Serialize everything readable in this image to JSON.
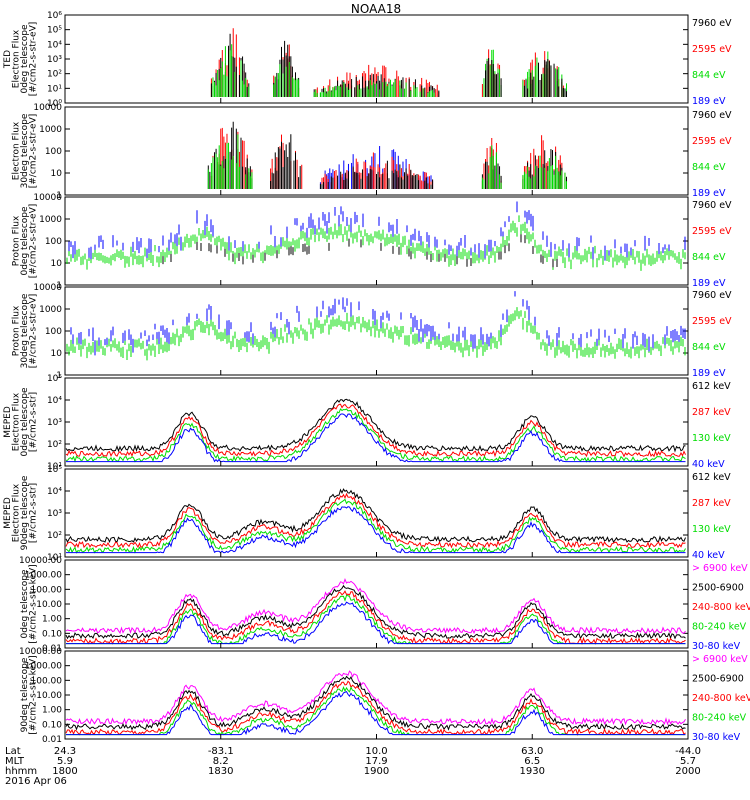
{
  "title": "NOAA18",
  "colors": {
    "blue": "#0000ff",
    "red": "#ff0000",
    "green": "#00dd00",
    "black": "#000000",
    "magenta": "#ff00ff"
  },
  "chart_data": [
    {
      "type": "line",
      "panel": 1,
      "log": true,
      "yticks": [
        "10⁰",
        "10¹",
        "10²",
        "10³",
        "10⁴",
        "10⁵",
        "10⁶"
      ],
      "ylabel_lines": [
        "TED",
        "Electron Flux",
        "0deg telescope",
        "[#/cm2-s-str-eV]"
      ],
      "series": [
        {
          "name": "7960 eV",
          "color": "#000000"
        },
        {
          "name": "2595 eV",
          "color": "#ff0000"
        },
        {
          "name": "844 eV",
          "color": "#00dd00"
        },
        {
          "name": "189 eV",
          "color": "#0000ff"
        }
      ],
      "bursts": [
        {
          "x": 0.265,
          "w": 0.03,
          "peak": 0.82,
          "colors": [
            "#ff0000",
            "#000000",
            "#00dd00"
          ]
        },
        {
          "x": 0.355,
          "w": 0.02,
          "peak": 0.78,
          "colors": [
            "#ff0000",
            "#000000",
            "#00dd00"
          ]
        },
        {
          "x": 0.5,
          "w": 0.1,
          "peak": 0.38,
          "colors": [
            "#ff0000",
            "#000000",
            "#00dd00"
          ]
        },
        {
          "x": 0.685,
          "w": 0.015,
          "peak": 0.78,
          "colors": [
            "#ff0000",
            "#00dd00",
            "#000000"
          ]
        },
        {
          "x": 0.77,
          "w": 0.035,
          "peak": 0.62,
          "colors": [
            "#ff0000",
            "#00dd00",
            "#000000"
          ]
        }
      ]
    },
    {
      "type": "line",
      "panel": 2,
      "log": true,
      "yticks": [
        "1",
        "10",
        "100",
        "1000",
        "10000"
      ],
      "ylabel_lines": [
        "Electron Flux",
        "30deg telescope",
        "[#/cm2-s-str-eV]"
      ],
      "series": [
        {
          "name": "7960 eV",
          "color": "#000000"
        },
        {
          "name": "2595 eV",
          "color": "#ff0000"
        },
        {
          "name": "844 eV",
          "color": "#00dd00"
        },
        {
          "name": "189 eV",
          "color": "#0000ff"
        }
      ],
      "bursts": [
        {
          "x": 0.265,
          "w": 0.035,
          "peak": 0.88,
          "colors": [
            "#ff0000",
            "#000000",
            "#00dd00"
          ]
        },
        {
          "x": 0.355,
          "w": 0.025,
          "peak": 0.8,
          "colors": [
            "#ff0000",
            "#000000"
          ]
        },
        {
          "x": 0.5,
          "w": 0.09,
          "peak": 0.5,
          "colors": [
            "#0000ff",
            "#ff0000",
            "#000000"
          ]
        },
        {
          "x": 0.685,
          "w": 0.015,
          "peak": 0.7,
          "colors": [
            "#ff0000",
            "#000000",
            "#00dd00"
          ]
        },
        {
          "x": 0.77,
          "w": 0.035,
          "peak": 0.65,
          "colors": [
            "#ff0000",
            "#000000",
            "#00dd00"
          ]
        }
      ]
    },
    {
      "type": "line",
      "panel": 3,
      "log": true,
      "yticks": [
        "1",
        "10",
        "100",
        "1000",
        "10000"
      ],
      "ylabel_lines": [
        "Proton Flux",
        "0deg telescope",
        "[#/cm2-s-str-eV]"
      ],
      "series": [
        {
          "name": "7960 eV",
          "color": "#000000"
        },
        {
          "name": "2595 eV",
          "color": "#ff0000"
        },
        {
          "name": "844 eV",
          "color": "#00dd00"
        },
        {
          "name": "189 eV",
          "color": "#0000ff"
        }
      ]
    },
    {
      "type": "line",
      "panel": 4,
      "log": true,
      "yticks": [
        "1",
        "10",
        "100",
        "1000",
        "10000"
      ],
      "ylabel_lines": [
        "Proton Flux",
        "30deg telescope",
        "[#/cm2-s-str-eV]"
      ],
      "series": [
        {
          "name": "7960 eV",
          "color": "#000000"
        },
        {
          "name": "2595 eV",
          "color": "#ff0000"
        },
        {
          "name": "844 eV",
          "color": "#00dd00"
        },
        {
          "name": "189 eV",
          "color": "#0000ff"
        }
      ]
    },
    {
      "type": "line",
      "panel": 5,
      "log": true,
      "yticks": [
        "10¹",
        "10²",
        "10³",
        "10⁴",
        "10⁵"
      ],
      "ylabel_lines": [
        "MEPED",
        "Electron Flux",
        "0deg telescope",
        "[#/cm2-s-str]"
      ],
      "series": [
        {
          "name": "612 keV",
          "color": "#000000"
        },
        {
          "name": "287 keV",
          "color": "#ff0000"
        },
        {
          "name": "130 keV",
          "color": "#00dd00"
        },
        {
          "name": "40 keV",
          "color": "#0000ff"
        }
      ]
    },
    {
      "type": "line",
      "panel": 6,
      "log": true,
      "yticks": [
        "10¹",
        "10²",
        "10³",
        "10⁴",
        "10⁵"
      ],
      "ylabel_lines": [
        "MEPED",
        "Electron Flux",
        "90deg telescope",
        "[#/cm2-s-str]"
      ],
      "series": [
        {
          "name": "612 keV",
          "color": "#000000"
        },
        {
          "name": "287 keV",
          "color": "#ff0000"
        },
        {
          "name": "130 keV",
          "color": "#00dd00"
        },
        {
          "name": "40 keV",
          "color": "#0000ff"
        }
      ]
    },
    {
      "type": "line",
      "panel": 7,
      "log": true,
      "yticks": [
        "0.01",
        "0.10",
        "1.00",
        "10.00",
        "100.00",
        "1000.00",
        "10000.00"
      ],
      "ylabel_lines": [
        "0deg telescope",
        "[#/cm2-s-str-keV]"
      ],
      "series": [
        {
          "name": "> 6900 keV",
          "color": "#ff00ff"
        },
        {
          "name": "2500-6900",
          "color": "#000000"
        },
        {
          "name": "240-800 keV",
          "color": "#ff0000"
        },
        {
          "name": "80-240 keV",
          "color": "#00dd00"
        },
        {
          "name": "30-80 keV",
          "color": "#0000ff"
        }
      ]
    },
    {
      "type": "line",
      "panel": 8,
      "log": true,
      "yticks": [
        "0.01",
        "0.10",
        "1.00",
        "10.00",
        "100.00",
        "1000.00",
        "10000.00"
      ],
      "ylabel_lines": [
        "90deg telescope",
        "[#/cm2-s-str-keV]"
      ],
      "series": [
        {
          "name": "> 6900 keV",
          "color": "#ff00ff"
        },
        {
          "name": "2500-6900",
          "color": "#000000"
        },
        {
          "name": "240-800 keV",
          "color": "#ff0000"
        },
        {
          "name": "80-240 keV",
          "color": "#00dd00"
        },
        {
          "name": "30-80 keV",
          "color": "#0000ff"
        }
      ]
    }
  ],
  "x_axis": {
    "row_labels": [
      "Lat",
      "MLT",
      "hhmm"
    ],
    "date": "2016 Apr 06",
    "ticks": [
      {
        "lat": "24.3",
        "mlt": "5.9",
        "hhmm": "1800"
      },
      {
        "lat": "-83.1",
        "mlt": "8.2",
        "hhmm": "1830"
      },
      {
        "lat": "10.0",
        "mlt": "17.9",
        "hhmm": "1900"
      },
      {
        "lat": "63.0",
        "mlt": "6.5",
        "hhmm": "1930"
      },
      {
        "lat": "-44.0",
        "mlt": "5.7",
        "hhmm": "2000"
      }
    ]
  }
}
